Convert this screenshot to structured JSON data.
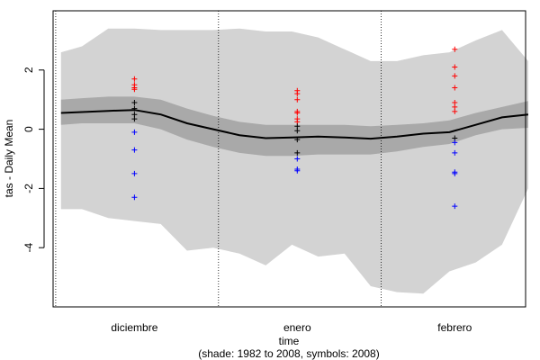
{
  "chart_data": {
    "type": "area",
    "title": "",
    "ylabel": "tas - Daily Mean",
    "xlabel": "time",
    "subtitle": "(shade: 1982 to 2008, symbols: 2008)",
    "ylim": [
      -6,
      4
    ],
    "yticks": [
      -4,
      -2,
      0,
      2
    ],
    "months": [
      {
        "label": "diciembre",
        "start": 0,
        "end": 31,
        "center": 15
      },
      {
        "label": "enero",
        "start": 31,
        "end": 62,
        "center": 46
      },
      {
        "label": "febrero",
        "start": 62,
        "end": 90,
        "center": 76
      }
    ],
    "month_separators": [
      0,
      31,
      62
    ],
    "x_domain": [
      -0.5,
      89.5
    ],
    "colors": {
      "outer_band": "#d3d3d3",
      "inner_band": "#a9a9a9",
      "mean_line": "#000000",
      "above": "#ff0000",
      "below": "#0000ff",
      "within": "#000000"
    },
    "series": {
      "days": [
        1,
        5,
        10,
        15,
        20,
        25,
        30,
        35,
        40,
        45,
        50,
        55,
        60,
        65,
        70,
        75,
        80,
        85,
        90
      ],
      "max": [
        2.6,
        2.8,
        3.4,
        3.4,
        3.35,
        3.35,
        3.35,
        3.4,
        3.3,
        3.3,
        3.1,
        2.7,
        2.3,
        2.3,
        2.5,
        2.6,
        3.0,
        3.35,
        2.3
      ],
      "p75": [
        1.0,
        1.05,
        1.1,
        1.1,
        1.0,
        0.7,
        0.45,
        0.25,
        0.15,
        0.15,
        0.15,
        0.15,
        0.1,
        0.15,
        0.2,
        0.3,
        0.55,
        0.75,
        0.95
      ],
      "mean": [
        0.55,
        0.58,
        0.62,
        0.65,
        0.5,
        0.2,
        0.0,
        -0.2,
        -0.3,
        -0.28,
        -0.25,
        -0.28,
        -0.32,
        -0.25,
        -0.15,
        -0.1,
        0.15,
        0.4,
        0.5
      ],
      "p25": [
        0.15,
        0.2,
        0.2,
        0.2,
        0.0,
        -0.35,
        -0.6,
        -0.8,
        -0.9,
        -0.9,
        -0.85,
        -0.85,
        -0.85,
        -0.75,
        -0.6,
        -0.5,
        -0.2,
        0.0,
        0.05
      ],
      "min": [
        -2.7,
        -2.7,
        -3.0,
        -3.1,
        -3.2,
        -4.1,
        -4.0,
        -4.2,
        -4.6,
        -3.9,
        -4.3,
        -4.2,
        -5.3,
        -5.5,
        -5.55,
        -4.8,
        -4.5,
        -3.9,
        -2.0
      ]
    },
    "symbols_year": "2008",
    "symbols": [
      {
        "x": 15,
        "values": [
          1.7,
          1.5,
          1.4,
          1.35,
          0.9,
          0.7,
          0.5,
          0.35,
          -0.1,
          -0.7,
          -1.5,
          -2.3
        ]
      },
      {
        "x": 46,
        "values": [
          1.3,
          1.2,
          1.0,
          0.6,
          0.55,
          0.35,
          0.25,
          0.1,
          -0.05,
          -0.35,
          -0.8,
          -1.0,
          -1.35,
          -1.4
        ]
      },
      {
        "x": 76,
        "values": [
          2.7,
          2.1,
          1.8,
          1.4,
          0.9,
          0.75,
          0.6,
          -0.3,
          -0.45,
          -0.8,
          -1.45,
          -1.5,
          -2.6
        ]
      }
    ]
  }
}
